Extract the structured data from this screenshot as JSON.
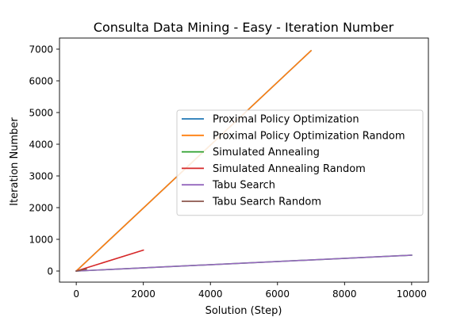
{
  "chart_data": {
    "type": "line",
    "title": "Consulta Data Mining - Easy - Iteration Number",
    "xlabel": "Solution (Step)",
    "ylabel": "Iteration Number",
    "xlim": [
      -500,
      10500
    ],
    "ylim": [
      -350,
      7350
    ],
    "xticks": [
      0,
      2000,
      4000,
      6000,
      8000,
      10000
    ],
    "xtick_labels": [
      "0",
      "2000",
      "4000",
      "6000",
      "8000",
      "10000"
    ],
    "yticks": [
      0,
      1000,
      2000,
      3000,
      4000,
      5000,
      6000,
      7000
    ],
    "ytick_labels": [
      "0",
      "1000",
      "2000",
      "3000",
      "4000",
      "5000",
      "6000",
      "7000"
    ],
    "grid": false,
    "legend_position": "center-right",
    "series": [
      {
        "name": "Proximal Policy Optimization",
        "color": "#1f77b4",
        "x": [
          0,
          7000
        ],
        "y": [
          0,
          6950
        ]
      },
      {
        "name": "Proximal Policy Optimization Random",
        "color": "#ff7f0e",
        "x": [
          0,
          7000
        ],
        "y": [
          0,
          6950
        ]
      },
      {
        "name": "Simulated Annealing",
        "color": "#2ca02c",
        "x": [
          0,
          10000
        ],
        "y": [
          0,
          500
        ]
      },
      {
        "name": "Simulated Annealing Random",
        "color": "#d62728",
        "x": [
          0,
          2000
        ],
        "y": [
          0,
          660
        ]
      },
      {
        "name": "Tabu Search",
        "color": "#9467bd",
        "x": [
          0,
          10000
        ],
        "y": [
          0,
          500
        ]
      },
      {
        "name": "Tabu Search Random",
        "color": "#8c564b",
        "x": [
          0,
          300
        ],
        "y": [
          0,
          60
        ]
      }
    ]
  }
}
